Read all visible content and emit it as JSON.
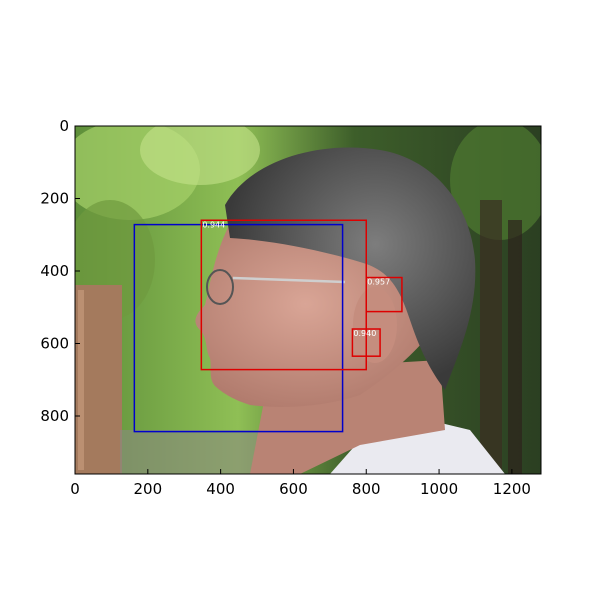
{
  "image": {
    "description_icon": "photo-icon",
    "x_range": [
      0,
      1280
    ],
    "y_range": [
      0,
      960
    ]
  },
  "axes": {
    "x_ticks": [
      {
        "value": 0,
        "label": "0"
      },
      {
        "value": 200,
        "label": "200"
      },
      {
        "value": 400,
        "label": "400"
      },
      {
        "value": 600,
        "label": "600"
      },
      {
        "value": 800,
        "label": "800"
      },
      {
        "value": 1000,
        "label": "1000"
      },
      {
        "value": 1200,
        "label": "1200"
      }
    ],
    "y_ticks": [
      {
        "value": 0,
        "label": "0"
      },
      {
        "value": 200,
        "label": "200"
      },
      {
        "value": 400,
        "label": "400"
      },
      {
        "value": 600,
        "label": "600"
      },
      {
        "value": 800,
        "label": "800"
      }
    ]
  },
  "boxes": [
    {
      "name": "face-box-blue",
      "color": "#0000cc",
      "x1": 163,
      "y1": 272,
      "x2": 735,
      "y2": 843,
      "score": ""
    },
    {
      "name": "head-box-red",
      "color": "#dd0000",
      "x1": 347,
      "y1": 260,
      "x2": 800,
      "y2": 672,
      "score": "0.944"
    },
    {
      "name": "ear-box-upper",
      "color": "#dd0000",
      "x1": 800,
      "y1": 418,
      "x2": 898,
      "y2": 512,
      "score": "0.957"
    },
    {
      "name": "ear-box-lower",
      "color": "#dd0000",
      "x1": 762,
      "y1": 560,
      "x2": 838,
      "y2": 635,
      "score": "0.940"
    }
  ]
}
